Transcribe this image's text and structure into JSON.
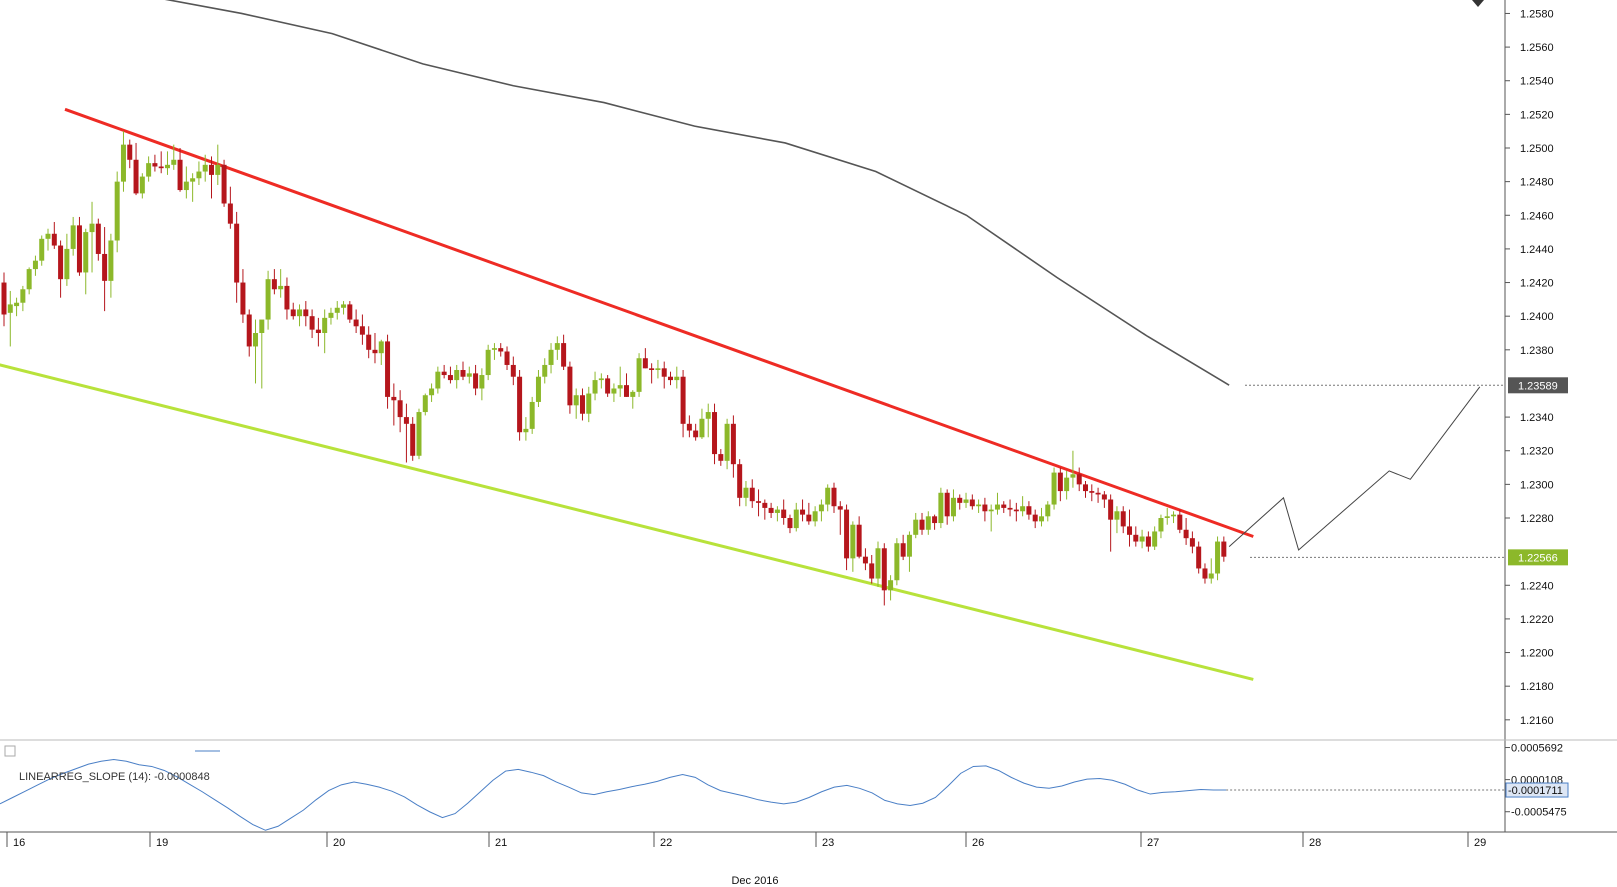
{
  "chart_data": {
    "type": "candlestick",
    "title": "",
    "price_axis": {
      "ylim": [
        1.2148,
        1.2588
      ],
      "ticks": [
        "1.2580",
        "1.2560",
        "1.2540",
        "1.2520",
        "1.2500",
        "1.2480",
        "1.2460",
        "1.2440",
        "1.2420",
        "1.2400",
        "1.2380",
        "1.2340",
        "1.2320",
        "1.2300",
        "1.2280",
        "1.2240",
        "1.2220",
        "1.2200",
        "1.2180",
        "1.2160"
      ],
      "last_price_tag": "1.22566",
      "ma_tag": "1.23589"
    },
    "date_axis": {
      "day_labels": [
        "16",
        "19",
        "20",
        "21",
        "22",
        "23",
        "26",
        "27",
        "28",
        "29"
      ],
      "month_label": "Dec 2016"
    },
    "channel": {
      "upper": {
        "color": "#ee2b24",
        "from": [
          0.0,
          1.2523
        ],
        "to": [
          41.5,
          1.2269
        ]
      },
      "lower": {
        "color": "#b8e23b",
        "from": [
          -2.0,
          1.238
        ],
        "to": [
          41.5,
          1.2184
        ]
      }
    },
    "moving_average": {
      "color": "#555555",
      "points": [
        [
          5,
          1.259
        ],
        [
          8,
          1.258
        ],
        [
          11,
          1.2568
        ],
        [
          14,
          1.255
        ],
        [
          17,
          1.2537
        ],
        [
          20,
          1.2527
        ],
        [
          23,
          1.2513
        ],
        [
          26,
          1.2503
        ],
        [
          29,
          1.2486
        ],
        [
          32,
          1.246
        ],
        [
          35,
          1.2423
        ],
        [
          38,
          1.2388
        ],
        [
          40.7,
          1.2359
        ]
      ]
    },
    "projection": {
      "color": "#444444",
      "points": [
        [
          40.7,
          1.2263
        ],
        [
          42.5,
          1.2292
        ],
        [
          43,
          1.2261
        ],
        [
          46,
          1.2308
        ],
        [
          46.7,
          1.2303
        ],
        [
          49,
          1.2358
        ]
      ]
    },
    "candles_ohlc": [
      [
        1.242,
        1.2426,
        1.2394,
        1.2401
      ],
      [
        1.2402,
        1.2415,
        1.2382,
        1.2407
      ],
      [
        1.2406,
        1.2411,
        1.24,
        1.2408
      ],
      [
        1.2408,
        1.2418,
        1.2403,
        1.2416
      ],
      [
        1.2416,
        1.2429,
        1.2413,
        1.2428
      ],
      [
        1.2428,
        1.2436,
        1.2424,
        1.2433
      ],
      [
        1.2433,
        1.2448,
        1.243,
        1.2446
      ],
      [
        1.2446,
        1.2452,
        1.2439,
        1.2449
      ],
      [
        1.2449,
        1.2456,
        1.244,
        1.2442
      ],
      [
        1.2442,
        1.2445,
        1.2411,
        1.2422
      ],
      [
        1.2422,
        1.2449,
        1.2418,
        1.244
      ],
      [
        1.244,
        1.2459,
        1.2436,
        1.2454
      ],
      [
        1.2454,
        1.2459,
        1.2424,
        1.2426
      ],
      [
        1.2426,
        1.2452,
        1.2413,
        1.245
      ],
      [
        1.245,
        1.2468,
        1.2426,
        1.2455
      ],
      [
        1.2455,
        1.2458,
        1.2433,
        1.2437
      ],
      [
        1.2437,
        1.2453,
        1.2403,
        1.2421
      ],
      [
        1.2421,
        1.2449,
        1.2411,
        1.2445
      ],
      [
        1.2445,
        1.2486,
        1.2438,
        1.248
      ],
      [
        1.248,
        1.251,
        1.2474,
        1.2502
      ],
      [
        1.2502,
        1.2505,
        1.2488,
        1.2493
      ],
      [
        1.2493,
        1.2503,
        1.2472,
        1.2473
      ],
      [
        1.2473,
        1.2485,
        1.247,
        1.2483
      ],
      [
        1.2483,
        1.2495,
        1.248,
        1.2491
      ],
      [
        1.2491,
        1.2496,
        1.2486,
        1.2489
      ],
      [
        1.2489,
        1.2498,
        1.2485,
        1.2488
      ],
      [
        1.2488,
        1.2498,
        1.2484,
        1.249
      ],
      [
        1.249,
        1.2502,
        1.2487,
        1.2493
      ],
      [
        1.2493,
        1.25,
        1.2474,
        1.2475
      ],
      [
        1.2475,
        1.2489,
        1.247,
        1.248
      ],
      [
        1.248,
        1.2485,
        1.2468,
        1.2482
      ],
      [
        1.2482,
        1.2492,
        1.2478,
        1.2486
      ],
      [
        1.2486,
        1.2496,
        1.248,
        1.249
      ],
      [
        1.249,
        1.2495,
        1.247,
        1.2484
      ],
      [
        1.2484,
        1.2502,
        1.2478,
        1.249
      ],
      [
        1.249,
        1.2493,
        1.2465,
        1.2467
      ],
      [
        1.2467,
        1.2477,
        1.2452,
        1.2455
      ],
      [
        1.2455,
        1.2462,
        1.2408,
        1.242
      ],
      [
        1.242,
        1.2428,
        1.2396,
        1.2401
      ],
      [
        1.2401,
        1.2404,
        1.2376,
        1.2382
      ],
      [
        1.2382,
        1.2398,
        1.236,
        1.239
      ],
      [
        1.239,
        1.2397,
        1.2357,
        1.2398
      ],
      [
        1.2398,
        1.2427,
        1.2392,
        1.2422
      ],
      [
        1.2422,
        1.2428,
        1.2413,
        1.2416
      ],
      [
        1.2416,
        1.2428,
        1.2411,
        1.2418
      ],
      [
        1.2418,
        1.2423,
        1.2398,
        1.2404
      ],
      [
        1.2404,
        1.2408,
        1.2398,
        1.24
      ],
      [
        1.24,
        1.2407,
        1.2394,
        1.2404
      ],
      [
        1.2404,
        1.2409,
        1.2394,
        1.24
      ],
      [
        1.24,
        1.2404,
        1.2387,
        1.2392
      ],
      [
        1.2392,
        1.2399,
        1.2382,
        1.239
      ],
      [
        1.239,
        1.2404,
        1.2378,
        1.2399
      ],
      [
        1.2399,
        1.2405,
        1.2395,
        1.2402
      ],
      [
        1.2402,
        1.2409,
        1.2398,
        1.2405
      ],
      [
        1.2405,
        1.2409,
        1.2401,
        1.2407
      ],
      [
        1.2407,
        1.2409,
        1.2396,
        1.2398
      ],
      [
        1.2398,
        1.2404,
        1.239,
        1.2394
      ],
      [
        1.2394,
        1.2401,
        1.2383,
        1.2389
      ],
      [
        1.2389,
        1.2394,
        1.2375,
        1.238
      ],
      [
        1.238,
        1.239,
        1.2372,
        1.2378
      ],
      [
        1.2378,
        1.2386,
        1.2371,
        1.2385
      ],
      [
        1.2385,
        1.2389,
        1.2345,
        1.2352
      ],
      [
        1.2352,
        1.236,
        1.2335,
        1.235
      ],
      [
        1.235,
        1.2356,
        1.2331,
        1.234
      ],
      [
        1.234,
        1.2348,
        1.2313,
        1.2336
      ],
      [
        1.2336,
        1.234,
        1.2314,
        1.2317
      ],
      [
        1.2317,
        1.2345,
        1.2315,
        1.2343
      ],
      [
        1.2343,
        1.2354,
        1.2341,
        1.2353
      ],
      [
        1.2353,
        1.236,
        1.2349,
        1.2357
      ],
      [
        1.2357,
        1.237,
        1.2354,
        1.2367
      ],
      [
        1.2367,
        1.2371,
        1.2363,
        1.2365
      ],
      [
        1.2365,
        1.237,
        1.236,
        1.2362
      ],
      [
        1.2362,
        1.2371,
        1.2357,
        1.2368
      ],
      [
        1.2368,
        1.2373,
        1.2362,
        1.2364
      ],
      [
        1.2364,
        1.237,
        1.236,
        1.2366
      ],
      [
        1.2366,
        1.2371,
        1.2353,
        1.2357
      ],
      [
        1.2357,
        1.2369,
        1.235,
        1.2365
      ],
      [
        1.2365,
        1.2383,
        1.2362,
        1.238
      ],
      [
        1.238,
        1.2384,
        1.2374,
        1.2381
      ],
      [
        1.2381,
        1.2384,
        1.2376,
        1.2379
      ],
      [
        1.2379,
        1.2382,
        1.2368,
        1.2371
      ],
      [
        1.2371,
        1.2376,
        1.2359,
        1.2364
      ],
      [
        1.2364,
        1.2368,
        1.2326,
        1.2331
      ],
      [
        1.2331,
        1.234,
        1.2326,
        1.2333
      ],
      [
        1.2333,
        1.2352,
        1.233,
        1.2349
      ],
      [
        1.2349,
        1.2368,
        1.2346,
        1.2364
      ],
      [
        1.2364,
        1.2375,
        1.236,
        1.2371
      ],
      [
        1.2371,
        1.2384,
        1.2366,
        1.238
      ],
      [
        1.238,
        1.2388,
        1.2374,
        1.2384
      ],
      [
        1.2384,
        1.2389,
        1.2368,
        1.237
      ],
      [
        1.237,
        1.2373,
        1.2342,
        1.2347
      ],
      [
        1.2347,
        1.2357,
        1.2339,
        1.2353
      ],
      [
        1.2353,
        1.2357,
        1.2338,
        1.2342
      ],
      [
        1.2342,
        1.2358,
        1.2337,
        1.2354
      ],
      [
        1.2354,
        1.2367,
        1.235,
        1.2362
      ],
      [
        1.2362,
        1.2366,
        1.2357,
        1.2363
      ],
      [
        1.2363,
        1.2365,
        1.2352,
        1.2354
      ],
      [
        1.2354,
        1.236,
        1.2349,
        1.2357
      ],
      [
        1.2357,
        1.237,
        1.2352,
        1.2359
      ],
      [
        1.2359,
        1.2366,
        1.2352,
        1.2352
      ],
      [
        1.2352,
        1.2356,
        1.2345,
        1.2355
      ],
      [
        1.2355,
        1.2378,
        1.2352,
        1.2375
      ],
      [
        1.2375,
        1.2381,
        1.2369,
        1.2369
      ],
      [
        1.2369,
        1.2372,
        1.236,
        1.2368
      ],
      [
        1.2368,
        1.2374,
        1.2363,
        1.2369
      ],
      [
        1.2369,
        1.2373,
        1.2357,
        1.2364
      ],
      [
        1.2364,
        1.2367,
        1.2359,
        1.2362
      ],
      [
        1.2362,
        1.237,
        1.2357,
        1.2364
      ],
      [
        1.2364,
        1.2368,
        1.2328,
        1.2336
      ],
      [
        1.2336,
        1.2341,
        1.2328,
        1.2332
      ],
      [
        1.2332,
        1.2336,
        1.2326,
        1.2328
      ],
      [
        1.2328,
        1.2345,
        1.2327,
        1.2339
      ],
      [
        1.2339,
        1.2348,
        1.2328,
        1.2343
      ],
      [
        1.2343,
        1.2348,
        1.2312,
        1.2318
      ],
      [
        1.2318,
        1.2321,
        1.2311,
        1.2314
      ],
      [
        1.2314,
        1.2339,
        1.2309,
        1.2336
      ],
      [
        1.2336,
        1.2341,
        1.2304,
        1.2312
      ],
      [
        1.2312,
        1.2315,
        1.2287,
        1.2292
      ],
      [
        1.2292,
        1.2302,
        1.2287,
        1.2298
      ],
      [
        1.2298,
        1.2303,
        1.2286,
        1.229
      ],
      [
        1.229,
        1.2297,
        1.2281,
        1.2289
      ],
      [
        1.2289,
        1.2291,
        1.2279,
        1.2286
      ],
      [
        1.2286,
        1.2289,
        1.228,
        1.2283
      ],
      [
        1.2283,
        1.2287,
        1.2278,
        1.2285
      ],
      [
        1.2285,
        1.2291,
        1.2276,
        1.228
      ],
      [
        1.228,
        1.2282,
        1.2271,
        1.2274
      ],
      [
        1.2274,
        1.2289,
        1.2272,
        1.2285
      ],
      [
        1.2285,
        1.2291,
        1.2278,
        1.2282
      ],
      [
        1.2282,
        1.2289,
        1.2276,
        1.2278
      ],
      [
        1.2278,
        1.2287,
        1.2275,
        1.2284
      ],
      [
        1.2284,
        1.2291,
        1.2278,
        1.2288
      ],
      [
        1.2288,
        1.23,
        1.2284,
        1.2298
      ],
      [
        1.2298,
        1.2301,
        1.2283,
        1.2287
      ],
      [
        1.2287,
        1.229,
        1.227,
        1.2285
      ],
      [
        1.2285,
        1.2288,
        1.2249,
        1.2256
      ],
      [
        1.2256,
        1.2278,
        1.2248,
        1.2276
      ],
      [
        1.2276,
        1.2281,
        1.2256,
        1.2257
      ],
      [
        1.2257,
        1.2262,
        1.2249,
        1.2253
      ],
      [
        1.2253,
        1.2258,
        1.2241,
        1.2244
      ],
      [
        1.2244,
        1.2266,
        1.2239,
        1.2262
      ],
      [
        1.2262,
        1.2265,
        1.2228,
        1.2237
      ],
      [
        1.2237,
        1.2246,
        1.2231,
        1.2243
      ],
      [
        1.2243,
        1.2268,
        1.224,
        1.2265
      ],
      [
        1.2265,
        1.227,
        1.2255,
        1.2257
      ],
      [
        1.2257,
        1.2272,
        1.2248,
        1.227
      ],
      [
        1.227,
        1.2283,
        1.2268,
        1.2279
      ],
      [
        1.2279,
        1.2283,
        1.227,
        1.2273
      ],
      [
        1.2273,
        1.2284,
        1.227,
        1.2281
      ],
      [
        1.2281,
        1.2282,
        1.2273,
        1.2277
      ],
      [
        1.2277,
        1.2298,
        1.2274,
        1.2295
      ],
      [
        1.2295,
        1.2297,
        1.2276,
        1.2281
      ],
      [
        1.2281,
        1.2297,
        1.2278,
        1.2292
      ],
      [
        1.2292,
        1.2294,
        1.2285,
        1.2289
      ],
      [
        1.2289,
        1.2295,
        1.2286,
        1.2291
      ],
      [
        1.2291,
        1.2294,
        1.2285,
        1.2287
      ],
      [
        1.2287,
        1.2291,
        1.2283,
        1.2288
      ],
      [
        1.2288,
        1.2292,
        1.2278,
        1.2284
      ],
      [
        1.2284,
        1.2288,
        1.2272,
        1.2285
      ],
      [
        1.2285,
        1.2295,
        1.2282,
        1.2288
      ],
      [
        1.2288,
        1.229,
        1.2283,
        1.2286
      ],
      [
        1.2286,
        1.2291,
        1.2281,
        1.2285
      ],
      [
        1.2285,
        1.2289,
        1.2278,
        1.2284
      ],
      [
        1.2284,
        1.2293,
        1.2281,
        1.2287
      ],
      [
        1.2287,
        1.229,
        1.2279,
        1.2282
      ],
      [
        1.2282,
        1.2285,
        1.2274,
        1.2278
      ],
      [
        1.2278,
        1.2286,
        1.2275,
        1.2281
      ],
      [
        1.2281,
        1.229,
        1.2278,
        1.2288
      ],
      [
        1.2288,
        1.231,
        1.2285,
        1.2307
      ],
      [
        1.2307,
        1.231,
        1.229,
        1.2296
      ],
      [
        1.2296,
        1.2308,
        1.2291,
        1.2304
      ],
      [
        1.2304,
        1.232,
        1.2298,
        1.2306
      ],
      [
        1.2306,
        1.231,
        1.2296,
        1.23
      ],
      [
        1.23,
        1.2302,
        1.2292,
        1.2296
      ],
      [
        1.2296,
        1.23,
        1.229,
        1.2295
      ],
      [
        1.2295,
        1.2298,
        1.2289,
        1.2294
      ],
      [
        1.2294,
        1.2296,
        1.2286,
        1.2291
      ],
      [
        1.2291,
        1.2294,
        1.226,
        1.2279
      ],
      [
        1.2279,
        1.2287,
        1.2271,
        1.2284
      ],
      [
        1.2284,
        1.2287,
        1.2271,
        1.2275
      ],
      [
        1.2275,
        1.2285,
        1.2263,
        1.227
      ],
      [
        1.227,
        1.2275,
        1.2263,
        1.2266
      ],
      [
        1.2266,
        1.2273,
        1.2262,
        1.2269
      ],
      [
        1.2269,
        1.2272,
        1.226,
        1.2263
      ],
      [
        1.2263,
        1.2275,
        1.2261,
        1.2272
      ],
      [
        1.2272,
        1.2282,
        1.2268,
        1.228
      ],
      [
        1.228,
        1.2286,
        1.2276,
        1.2281
      ],
      [
        1.2281,
        1.2284,
        1.2277,
        1.2282
      ],
      [
        1.2282,
        1.2285,
        1.2271,
        1.2273
      ],
      [
        1.2273,
        1.228,
        1.2264,
        1.2268
      ],
      [
        1.2268,
        1.2272,
        1.2259,
        1.2263
      ],
      [
        1.2263,
        1.2266,
        1.2247,
        1.225
      ],
      [
        1.225,
        1.2253,
        1.2241,
        1.2244
      ],
      [
        1.2244,
        1.2256,
        1.2241,
        1.2247
      ],
      [
        1.2247,
        1.2269,
        1.2243,
        1.2266
      ],
      [
        1.2266,
        1.2269,
        1.2254,
        1.2257
      ]
    ],
    "indicator": {
      "label": "LINEARREG_SLOPE (14): -0.0000848",
      "ticks": [
        "0.0005692",
        "0.0000108",
        "-0.0005475"
      ],
      "last_value_tag": "-0.0001711",
      "ylim": [
        -0.0009,
        0.0007
      ],
      "color": "#4a7fc6",
      "values": [
        -0.00041,
        -0.0003,
        -0.00019,
        -8e-05,
        3e-05,
        0.00012,
        0.0002,
        0.00028,
        0.00033,
        0.00036,
        0.00033,
        0.00027,
        0.00024,
        0.00017,
        6e-05,
        -7e-05,
        -0.0002,
        -0.00034,
        -0.00048,
        -0.00063,
        -0.00077,
        -0.00087,
        -0.0008,
        -0.00066,
        -0.00052,
        -0.00034,
        -0.00018,
        -8e-05,
        -3e-05,
        -7e-05,
        -0.00012,
        -0.00019,
        -0.00029,
        -0.00043,
        -0.00055,
        -0.00065,
        -0.00058,
        -0.0004,
        -0.0002,
        0.0,
        0.00016,
        0.00019,
        0.00014,
        8e-05,
        -3e-05,
        -0.00012,
        -0.00022,
        -0.00025,
        -0.0002,
        -0.00016,
        -0.00011,
        -7e-05,
        -2e-05,
        5e-05,
        0.0001,
        5e-05,
        -8e-05,
        -0.00018,
        -0.00023,
        -0.00028,
        -0.00034,
        -0.00038,
        -0.00041,
        -0.00038,
        -0.0003,
        -0.0002,
        -0.00012,
        -9e-05,
        -0.00014,
        -0.00022,
        -0.00035,
        -0.00041,
        -0.00044,
        -0.0004,
        -0.0003,
        -0.0001,
        0.00012,
        0.00024,
        0.00025,
        0.00017,
        5e-05,
        -5e-05,
        -0.00012,
        -0.00014,
        -0.0001,
        -3e-05,
        2e-05,
        3e-05,
        0.0,
        -7e-05,
        -0.00017,
        -0.00024,
        -0.00021,
        -0.0002,
        -0.00018,
        -0.00016,
        -0.00017,
        -0.00017
      ],
      "value_x_range": [
        0,
        40.6
      ]
    }
  }
}
